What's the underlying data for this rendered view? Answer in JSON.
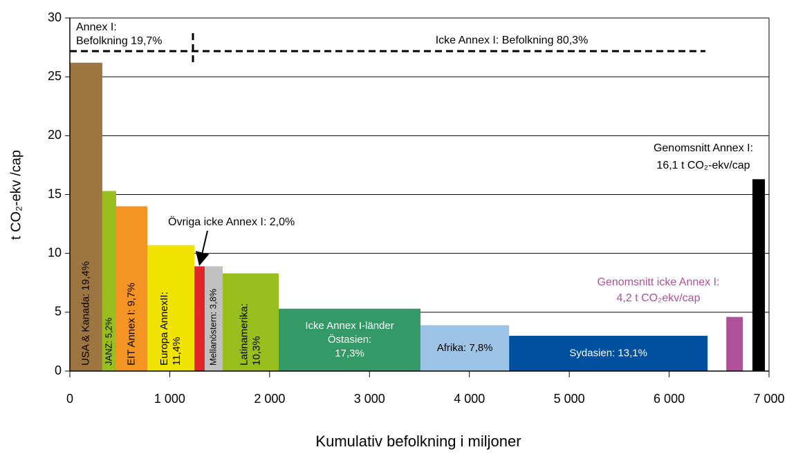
{
  "chart_data": {
    "type": "variable-width-bar",
    "y_label": "t CO₂-ekv /cap",
    "x_label": "Kumulativ befolkning i miljoner",
    "xlim": [
      0,
      7000
    ],
    "ylim": [
      0,
      30
    ],
    "xticks": [
      0,
      {
        "value": 1000,
        "label": "1 000"
      },
      {
        "value": 2000,
        "label": "2 000"
      },
      {
        "value": 3000,
        "label": "3 000"
      },
      {
        "value": 4000,
        "label": "4 000"
      },
      {
        "value": 5000,
        "label": "5 000"
      },
      {
        "value": 6000,
        "label": "6 000"
      },
      {
        "value": 7000,
        "label": "7 000"
      }
    ],
    "yticks": [
      0,
      5,
      10,
      15,
      20,
      25,
      30
    ],
    "grid": true,
    "bars": [
      {
        "label": [
          "USA & Kanada: 19,4%"
        ],
        "x0": 0,
        "x1": 325,
        "value": 26.2,
        "color": "#9c7541",
        "rotated": true,
        "text_color": "#000"
      },
      {
        "label": [
          "JANZ: 5,2%"
        ],
        "x0": 325,
        "x1": 464,
        "value": 15.3,
        "color": "#99bf1f",
        "rotated": true,
        "text_color": "#000"
      },
      {
        "label": [
          "EIT Annex I: 9,7%"
        ],
        "x0": 464,
        "x1": 776,
        "value": 14.0,
        "color": "#f39423",
        "rotated": true,
        "text_color": "#000"
      },
      {
        "label": [
          "Europa AnnexII:",
          "11,4%"
        ],
        "x0": 776,
        "x1": 1247,
        "value": 10.7,
        "color": "#f0e300",
        "rotated": true,
        "text_color": "#000"
      },
      {
        "label": [],
        "x0": 1247,
        "x1": 1350,
        "value": 8.9,
        "color": "#e3262a",
        "rotated": true,
        "text_color": "#000"
      },
      {
        "label": [
          "Mellanöstern: 3,8%"
        ],
        "x0": 1350,
        "x1": 1530,
        "value": 8.9,
        "color": "#c0c0c0",
        "rotated": true,
        "text_color": "#000"
      },
      {
        "label": [
          "Latinamerika:",
          "10,3%"
        ],
        "x0": 1530,
        "x1": 2091,
        "value": 8.3,
        "color": "#99bf1f",
        "rotated": true,
        "text_color": "#000"
      },
      {
        "label": [
          "Icke Annex I-länder",
          "Östasien:",
          "17,3%"
        ],
        "x0": 2091,
        "x1": 3511,
        "value": 5.3,
        "color": "#339966",
        "rotated": false,
        "text_color": "#fff"
      },
      {
        "label": [
          "Afrika: 7,8%"
        ],
        "x0": 3511,
        "x1": 4398,
        "value": 3.9,
        "color": "#9dc3e6",
        "rotated": false,
        "text_color": "#000"
      },
      {
        "label": [
          "Sydasien: 13,1%"
        ],
        "x0": 4398,
        "x1": 6385,
        "value": 3.0,
        "color": "#0050a0",
        "rotated": false,
        "text_color": "#fff"
      },
      {
        "label": [],
        "x0": 6572,
        "x1": 6738,
        "value": 4.6,
        "color": "#b0509a",
        "rotated": false,
        "text_color": "#000"
      },
      {
        "label": [],
        "x0": 6834,
        "x1": 6959,
        "value": 16.3,
        "color": "#000000",
        "rotated": false,
        "text_color": "#000"
      }
    ],
    "annotations": {
      "annex_pop": [
        "Annex I:",
        "Befolkning 19,7%"
      ],
      "non_annex_pop": "Icke  Annex I: Befolkning 80,3%",
      "other": "Övriga icke  Annex I: 2,0%",
      "avg_annex": [
        "Genomsnitt Annex I:",
        "16,1 t CO₂-ekv/cap"
      ],
      "avg_non_annex": [
        "Genomsnitt icke  Annex I:",
        "4,2 t CO₂ekv/cap"
      ]
    }
  }
}
